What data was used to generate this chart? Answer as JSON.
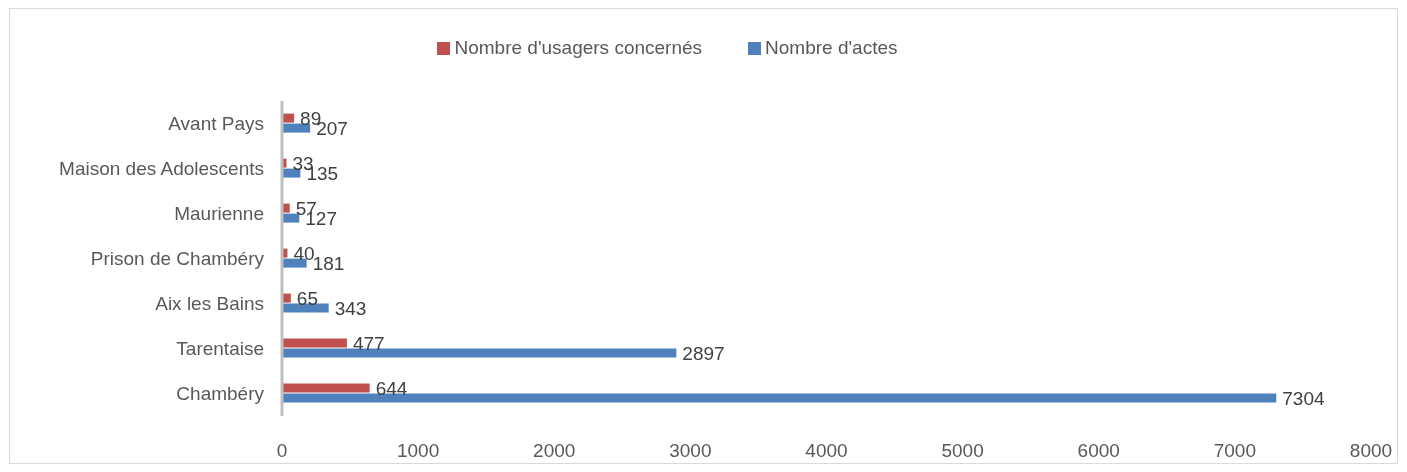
{
  "chart_data": {
    "type": "bar",
    "orientation": "horizontal",
    "categories": [
      "Avant Pays",
      "Maison des Adolescents",
      "Maurienne",
      "Prison de Chambéry",
      "Aix les Bains",
      "Tarentaise",
      "Chambéry"
    ],
    "series": [
      {
        "name": "Nombre d'usagers concernés",
        "color": "#c0504d",
        "values": [
          89,
          33,
          57,
          40,
          65,
          477,
          644
        ]
      },
      {
        "name": "Nombre d'actes",
        "color": "#4f81bd",
        "values": [
          207,
          135,
          127,
          181,
          343,
          2897,
          7304
        ]
      }
    ],
    "xlim": [
      0,
      8000
    ],
    "xticks": [
      0,
      1000,
      2000,
      3000,
      4000,
      5000,
      6000,
      7000,
      8000
    ],
    "data_labels": true,
    "legend": "top"
  }
}
